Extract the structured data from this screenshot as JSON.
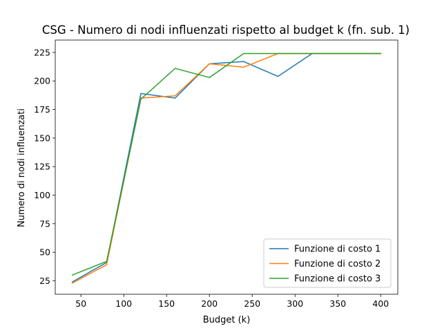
{
  "chart_data": {
    "type": "line",
    "title": "CSG - Numero di nodi influenzati rispetto al budget k (fn. sub. 1)",
    "xlabel": "Budget (k)",
    "ylabel": "Numero di nodi influenzati",
    "xlim": [
      20,
      420
    ],
    "ylim": [
      13.2,
      235.8
    ],
    "xticks": [
      50,
      100,
      150,
      200,
      250,
      300,
      350,
      400
    ],
    "yticks": [
      25,
      50,
      75,
      100,
      125,
      150,
      175,
      200,
      225
    ],
    "grid": false,
    "legend_position": "lower right",
    "x": [
      40,
      80,
      120,
      160,
      200,
      240,
      280,
      320,
      360,
      400
    ],
    "series": [
      {
        "name": "Funzione di costo 1",
        "color": "#1f77b4",
        "values": [
          24,
          41,
          189,
          185,
          215,
          217,
          204,
          224,
          224,
          224
        ]
      },
      {
        "name": "Funzione di costo 2",
        "color": "#ff7f0e",
        "values": [
          23,
          39,
          185,
          187,
          215,
          212,
          224,
          224,
          224,
          224
        ]
      },
      {
        "name": "Funzione di costo 3",
        "color": "#2ca02c",
        "values": [
          30,
          42,
          184,
          211,
          203,
          224,
          224,
          224,
          224,
          224
        ]
      }
    ]
  }
}
